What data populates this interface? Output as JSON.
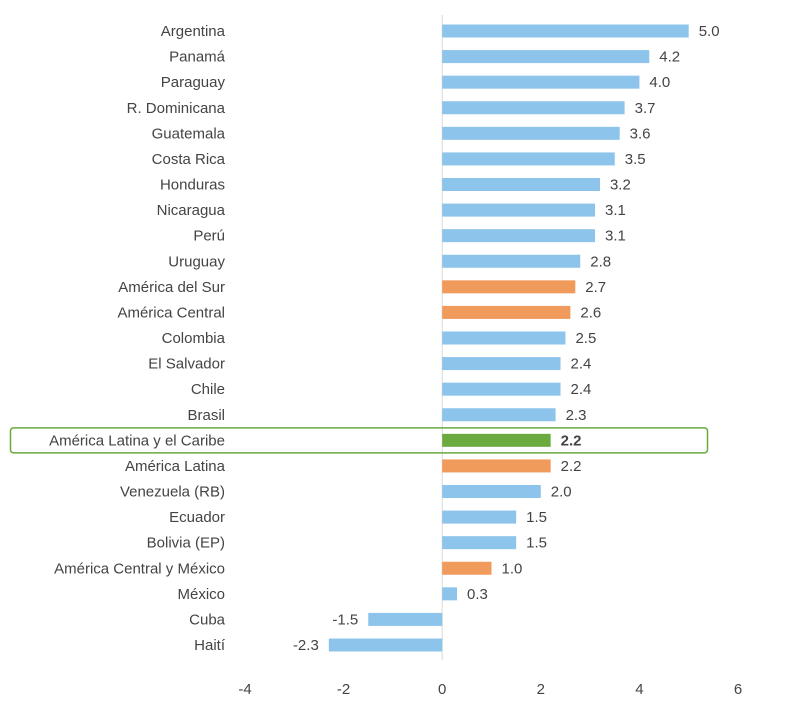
{
  "chart_data": {
    "type": "bar",
    "orientation": "horizontal",
    "categories": [
      "Argentina",
      "Panamá",
      "Paraguay",
      "R. Dominicana",
      "Guatemala",
      "Costa Rica",
      "Honduras",
      "Nicaragua",
      "Perú",
      "Uruguay",
      "América del Sur",
      "América Central",
      "Colombia",
      "El Salvador",
      "Chile",
      "Brasil",
      "América Latina y el Caribe",
      "América Latina",
      "Venezuela (RB)",
      "Ecuador",
      "Bolivia (EP)",
      "América Central y México",
      "México",
      "Cuba",
      "Haití"
    ],
    "values": [
      5.0,
      4.2,
      4.0,
      3.7,
      3.6,
      3.5,
      3.2,
      3.1,
      3.1,
      2.8,
      2.7,
      2.6,
      2.5,
      2.4,
      2.4,
      2.3,
      2.2,
      2.2,
      2.0,
      1.5,
      1.5,
      1.0,
      0.3,
      -1.5,
      -2.3
    ],
    "value_labels": [
      "5.0",
      "4.2",
      "4.0",
      "3.7",
      "3.6",
      "3.5",
      "3.2",
      "3.1",
      "3.1",
      "2.8",
      "2.7",
      "2.6",
      "2.5",
      "2.4",
      "2.4",
      "2.3",
      "2.2",
      "2.2",
      "2.0",
      "1.5",
      "1.5",
      "1.0",
      "0.3",
      "-1.5",
      "-2.3"
    ],
    "bar_kind": [
      "country",
      "country",
      "country",
      "country",
      "country",
      "country",
      "country",
      "country",
      "country",
      "country",
      "region",
      "region",
      "country",
      "country",
      "country",
      "country",
      "highlight",
      "region",
      "country",
      "country",
      "country",
      "region",
      "country",
      "country",
      "country"
    ],
    "colors": {
      "country": "#8DC4EC",
      "region": "#F09A5C",
      "highlight": "#6AAA3F",
      "highlight_border": "#6AAA3F"
    },
    "xlim": [
      -4,
      6
    ],
    "xticks": [
      "-4",
      "-2",
      "0",
      "2",
      "4",
      "6"
    ],
    "xtick_values": [
      -4,
      -2,
      0,
      2,
      4,
      6
    ],
    "grid": false,
    "title": "",
    "xlabel": "",
    "ylabel": ""
  }
}
